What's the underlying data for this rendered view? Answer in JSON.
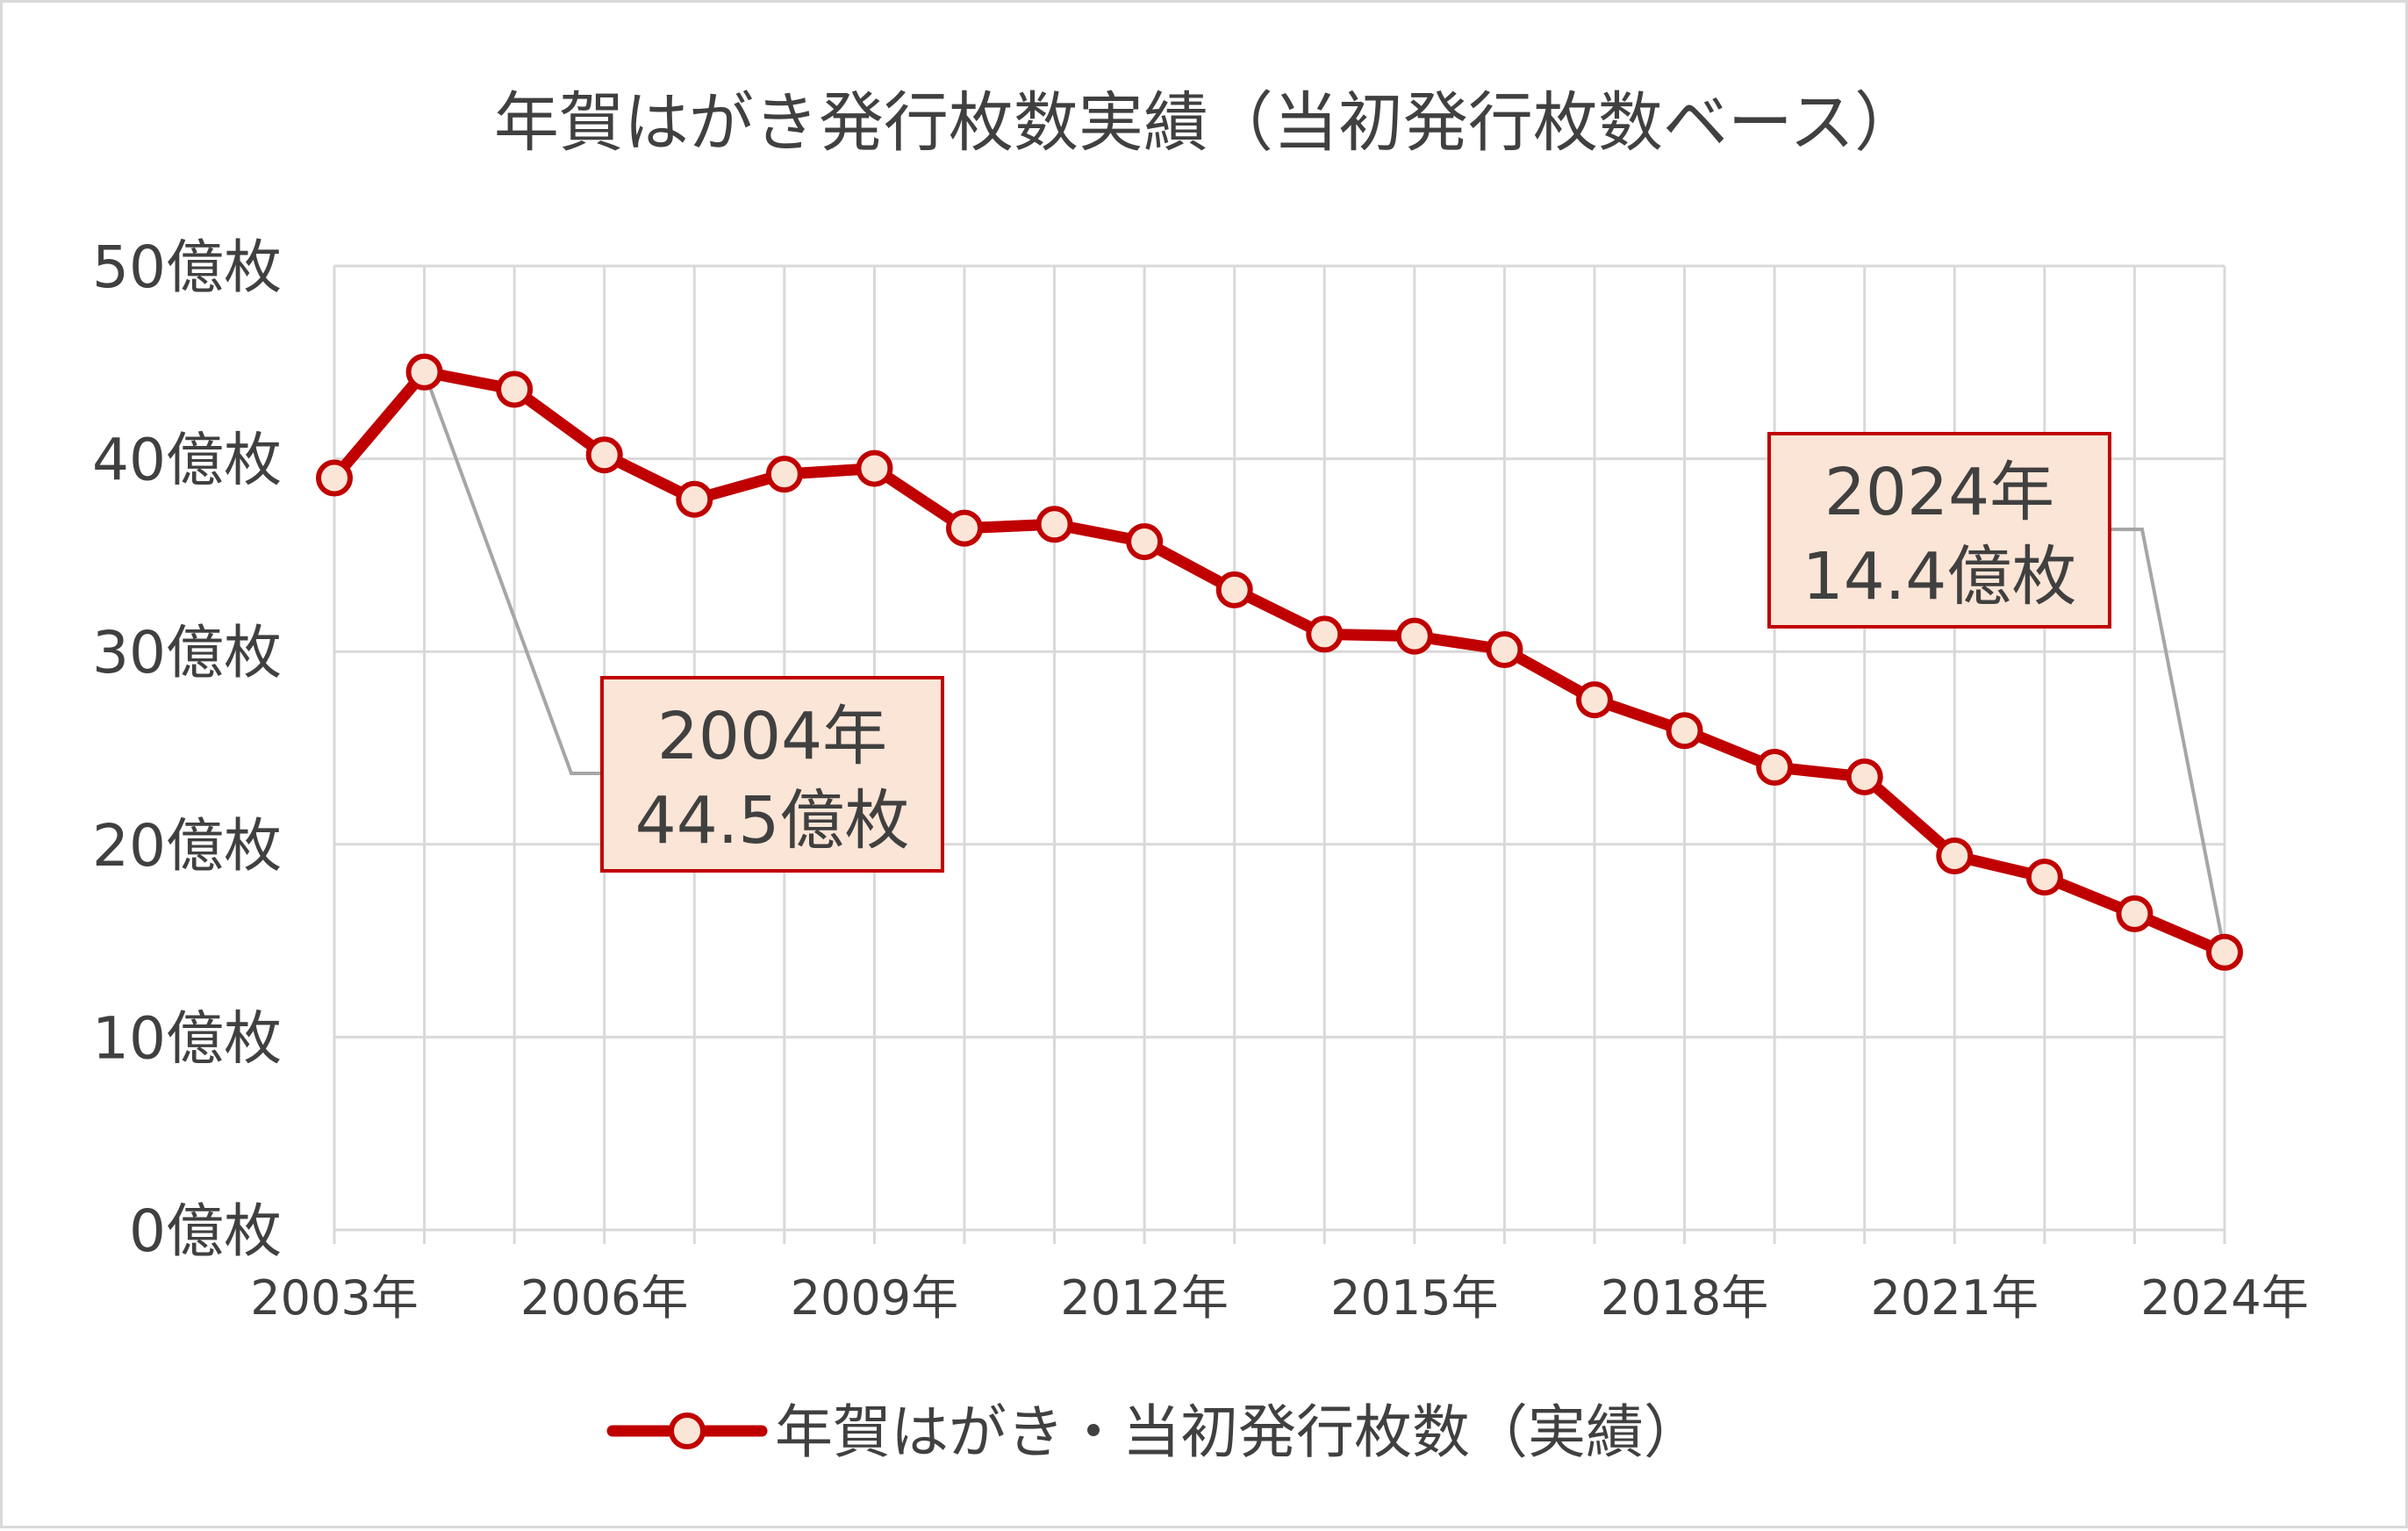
{
  "chart_data": {
    "type": "line",
    "title": "年賀はがき発行枚数実績（当初発行枚数ベース）",
    "x": [
      "2003年",
      "2004年",
      "2005年",
      "2006年",
      "2007年",
      "2008年",
      "2009年",
      "2010年",
      "2011年",
      "2012年",
      "2013年",
      "2014年",
      "2015年",
      "2016年",
      "2017年",
      "2018年",
      "2019年",
      "2020年",
      "2021年",
      "2022年",
      "2023年",
      "2024年"
    ],
    "x_tick_labels": [
      "2003年",
      "2006年",
      "2009年",
      "2012年",
      "2015年",
      "2018年",
      "2021年",
      "2024年"
    ],
    "series": [
      {
        "name": "年賀はがき・当初発行枚数（実績）",
        "values": [
          39.0,
          44.5,
          43.6,
          40.2,
          37.9,
          39.2,
          39.5,
          36.4,
          36.6,
          35.7,
          33.2,
          30.9,
          30.8,
          30.1,
          27.5,
          25.9,
          24.0,
          23.5,
          19.4,
          18.3,
          16.4,
          14.4
        ]
      }
    ],
    "y_ticks": [
      {
        "value": 0,
        "label": "0億枚"
      },
      {
        "value": 10,
        "label": "10億枚"
      },
      {
        "value": 20,
        "label": "20億枚"
      },
      {
        "value": 30,
        "label": "30億枚"
      },
      {
        "value": 40,
        "label": "40億枚"
      },
      {
        "value": 50,
        "label": "50億枚"
      }
    ],
    "ylim": [
      0,
      50
    ],
    "grid": true,
    "legend_position": "bottom",
    "annotations": [
      {
        "index": 1,
        "line1": "2004年",
        "line2": "44.5億枚"
      },
      {
        "index": 21,
        "line1": "2024年",
        "line2": "14.4億枚"
      }
    ],
    "colors": {
      "line": "#c00000",
      "marker_fill": "#fbe5d6",
      "grid": "#d9d9d9",
      "leader": "#a6a6a6",
      "ann_border": "#c00000",
      "ann_fill": "#fbe5d6"
    }
  }
}
